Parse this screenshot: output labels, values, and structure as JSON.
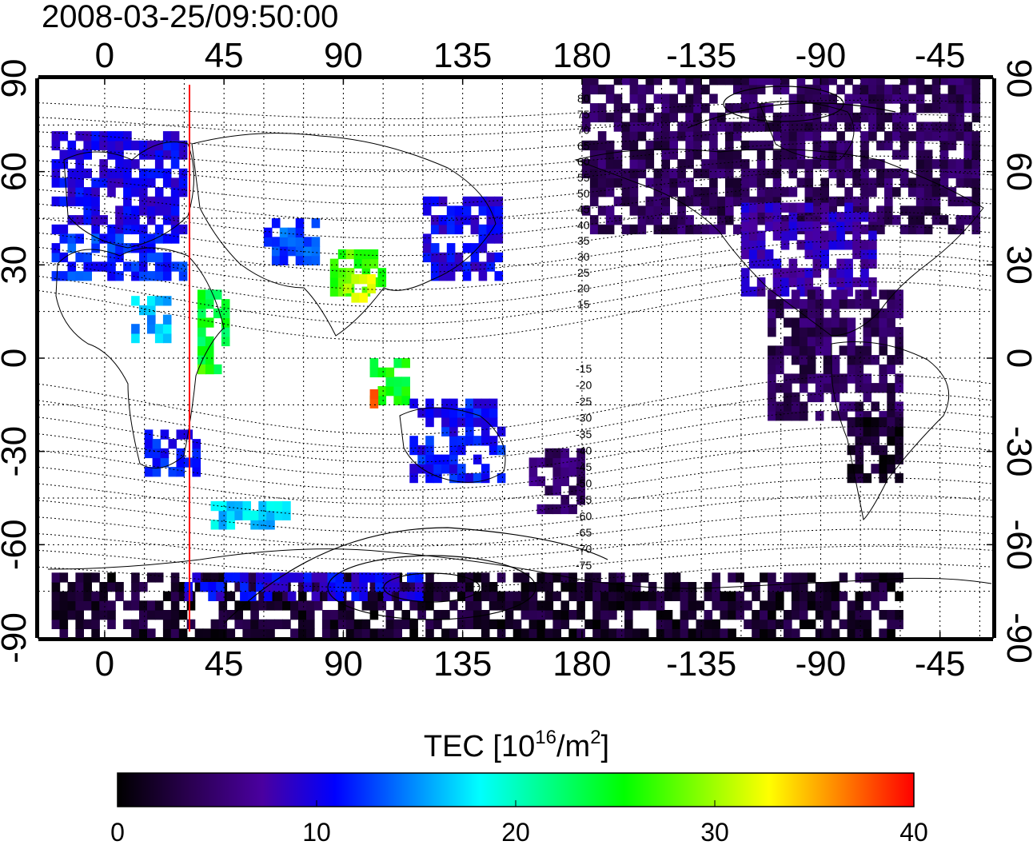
{
  "title": "2008-03-25/09:50:00",
  "map": {
    "lon_ticks": [
      "0",
      "45",
      "90",
      "135",
      "180",
      "-135",
      "-90",
      "-45"
    ],
    "lat_ticks": [
      "90",
      "60",
      "30",
      "0",
      "-30",
      "-60",
      "-90"
    ],
    "lon_range": [
      -25,
      335
    ],
    "lat_range": [
      -90,
      90
    ],
    "terminator_lon": 32,
    "terminator_color": "#ff0000",
    "grid": true,
    "contour_labels_north": [
      "80",
      "75",
      "70",
      "65",
      "60",
      "55",
      "50",
      "45",
      "40",
      "35",
      "30",
      "25",
      "20",
      "15"
    ],
    "contour_labels_south": [
      "-15",
      "-20",
      "-25",
      "-30",
      "-35",
      "-40",
      "-45",
      "-50",
      "-55",
      "-60",
      "-65",
      "-70",
      "-75"
    ]
  },
  "colorbar": {
    "title_prefix": "TEC  [10",
    "title_sup1": "16",
    "title_mid": "/m",
    "title_sup2": "2",
    "title_suffix": "]",
    "ticks": [
      "0",
      "10",
      "20",
      "30",
      "40"
    ],
    "range": [
      0,
      40
    ],
    "colors": [
      "#000000",
      "#2a0050",
      "#4a00a0",
      "#0000ff",
      "#0080ff",
      "#00ffff",
      "#00ff80",
      "#00ff00",
      "#80ff00",
      "#ffff00",
      "#ff8000",
      "#ff0000"
    ]
  },
  "chart_data": {
    "type": "heatmap",
    "title": "2008-03-25/09:50:00",
    "xlabel": "",
    "ylabel": "",
    "colorbar_label": "TEC [10^16/m^2]",
    "colorbar_range": [
      0,
      40
    ],
    "regions": [
      {
        "lon": [
          -20,
          30
        ],
        "lat": [
          40,
          72
        ],
        "tec": 10
      },
      {
        "lon": [
          -20,
          30
        ],
        "lat": [
          25,
          40
        ],
        "tec": 12
      },
      {
        "lon": [
          10,
          25
        ],
        "lat": [
          5,
          20
        ],
        "tec": 16
      },
      {
        "lon": [
          35,
          45
        ],
        "lat": [
          -5,
          20
        ],
        "tec": 24
      },
      {
        "lon": [
          35,
          40
        ],
        "lat": [
          -5,
          0
        ],
        "tec": 28
      },
      {
        "lon": [
          15,
          35
        ],
        "lat": [
          -38,
          -25
        ],
        "tec": 11
      },
      {
        "lon": [
          60,
          80
        ],
        "lat": [
          30,
          45
        ],
        "tec": 13
      },
      {
        "lon": [
          85,
          105
        ],
        "lat": [
          20,
          35
        ],
        "tec": 27
      },
      {
        "lon": [
          90,
          100
        ],
        "lat": [
          18,
          25
        ],
        "tec": 31
      },
      {
        "lon": [
          100,
          115
        ],
        "lat": [
          -15,
          0
        ],
        "tec": 25
      },
      {
        "lon": [
          100,
          103
        ],
        "lat": [
          -16,
          -12
        ],
        "tec": 38
      },
      {
        "lon": [
          120,
          150
        ],
        "lat": [
          25,
          50
        ],
        "tec": 10
      },
      {
        "lon": [
          115,
          150
        ],
        "lat": [
          -40,
          -15
        ],
        "tec": 11
      },
      {
        "lon": [
          160,
          180
        ],
        "lat": [
          -50,
          -30
        ],
        "tec": 5
      },
      {
        "lon": [
          180,
          330
        ],
        "lat": [
          40,
          90
        ],
        "tec": 4
      },
      {
        "lon": [
          240,
          290
        ],
        "lat": [
          20,
          50
        ],
        "tec": 8
      },
      {
        "lon": [
          250,
          300
        ],
        "lat": [
          -20,
          20
        ],
        "tec": 4
      },
      {
        "lon": [
          280,
          300
        ],
        "lat": [
          -40,
          -20
        ],
        "tec": 2
      },
      {
        "lon": [
          -20,
          300
        ],
        "lat": [
          -90,
          -70
        ],
        "tec": 2
      },
      {
        "lon": [
          30,
          120
        ],
        "lat": [
          -78,
          -70
        ],
        "tec": 10
      },
      {
        "lon": [
          40,
          70
        ],
        "lat": [
          -55,
          -48
        ],
        "tec": 17
      }
    ]
  }
}
